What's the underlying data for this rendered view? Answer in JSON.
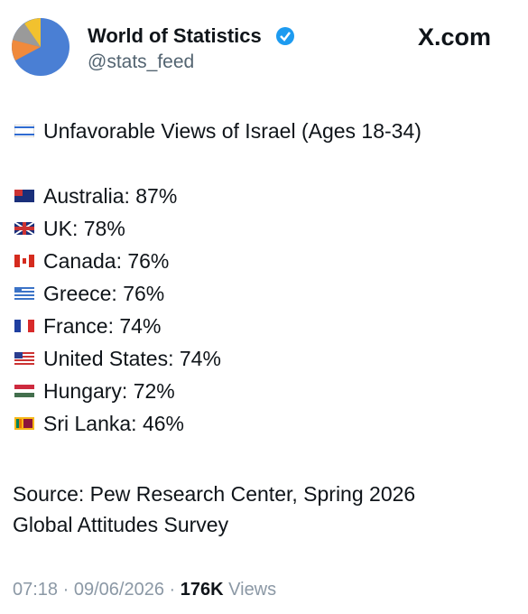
{
  "header": {
    "name": "World of Statistics",
    "handle": "@stats_feed",
    "logo": "X.com"
  },
  "post": {
    "title": "Unfavorable Views of Israel (Ages 18-34)",
    "items": [
      "Australia: 87%",
      "UK: 78%",
      "Canada: 76%",
      "Greece: 76%",
      "France: 74%",
      "United States: 74%",
      "Hungary: 72%",
      "Sri Lanka: 46%"
    ],
    "source": [
      "Source: Pew Research Center, Spring 2026",
      "Global Attitudes Survey"
    ]
  },
  "footer": {
    "time": "07:18",
    "separator": "·",
    "date": "09/06/2026",
    "views": "176K",
    "views_label": "Views"
  }
}
